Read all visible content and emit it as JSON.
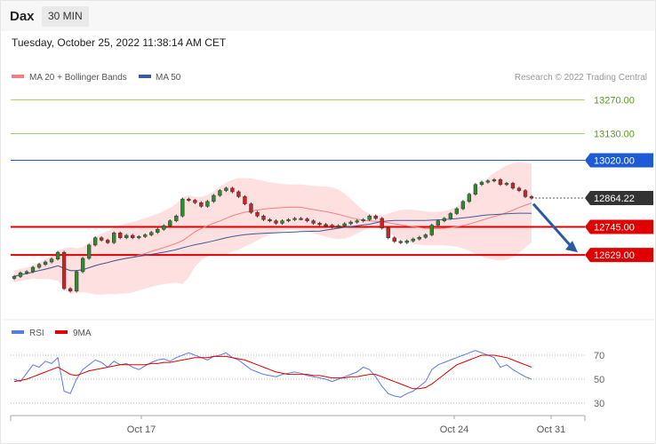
{
  "instrument": "Dax",
  "timeframe": "30 MIN",
  "datetime": "Tuesday, October 25, 2022 11:38:14 AM CET",
  "legend": {
    "ma20_label": "MA 20 + Bollinger Bands",
    "ma50_label": "MA 50",
    "copyright": "Research © 2022 Trading Central"
  },
  "rsi_legend": {
    "rsi_label": "RSI",
    "ma_label": "9MA"
  },
  "colors": {
    "ma20": "#f08080",
    "bollinger_fill": "#ffd5d5",
    "ma50": "#3d5a99",
    "resistance_green": "#a5cf6a",
    "resistance_text": "#5a9e1a",
    "blue_level": "#1c5ad6",
    "red_level": "#e00000",
    "last_price": "#333333",
    "arrow": "#2a5aa0",
    "candle_up": "#2e8b2e",
    "candle_down": "#cc2222",
    "rsi": "#5a7de0",
    "rsi_ma": "#e00000"
  },
  "chart_data": [
    {
      "type": "candlestick",
      "title": "Dax",
      "x_ticks": [
        "Oct 17",
        "Oct 24",
        "Oct 31"
      ],
      "ylim": [
        12380,
        13330
      ],
      "levels": [
        {
          "label": "13270.00",
          "value": 13270,
          "style": "resistance"
        },
        {
          "label": "13130.00",
          "value": 13130,
          "style": "resistance"
        },
        {
          "label": "13020.00",
          "value": 13020,
          "style": "key"
        },
        {
          "label": "12864.22",
          "value": 12864.22,
          "style": "last"
        },
        {
          "label": "12745.00",
          "value": 12745,
          "style": "support"
        },
        {
          "label": "12629.00",
          "value": 12629,
          "style": "support"
        }
      ],
      "close": [
        12540,
        12555,
        12560,
        12578,
        12590,
        12600,
        12612,
        12640,
        12490,
        12480,
        12560,
        12615,
        12670,
        12700,
        12690,
        12680,
        12720,
        12700,
        12710,
        12700,
        12705,
        12712,
        12722,
        12735,
        12750,
        12770,
        12790,
        12860,
        12855,
        12845,
        12830,
        12850,
        12875,
        12895,
        12905,
        12890,
        12870,
        12840,
        12805,
        12790,
        12775,
        12770,
        12760,
        12770,
        12775,
        12780,
        12778,
        12770,
        12760,
        12755,
        12752,
        12745,
        12750,
        12758,
        12765,
        12770,
        12775,
        12790,
        12780,
        12740,
        12700,
        12685,
        12680,
        12687,
        12695,
        12702,
        12712,
        12752,
        12770,
        12780,
        12800,
        12820,
        12850,
        12880,
        12920,
        12930,
        12935,
        12940,
        12920,
        12925,
        12905,
        12895,
        12870,
        12864
      ],
      "rsi": {
        "levels": [
          70,
          50,
          30
        ],
        "rsi": [
          50,
          48,
          55,
          62,
          60,
          65,
          63,
          68,
          40,
          38,
          50,
          58,
          62,
          66,
          64,
          60,
          65,
          62,
          63,
          60,
          58,
          61,
          64,
          66,
          67,
          65,
          68,
          70,
          72,
          70,
          68,
          66,
          69,
          70,
          72,
          68,
          66,
          62,
          58,
          56,
          54,
          53,
          52,
          54,
          55,
          56,
          55,
          53,
          52,
          51,
          50,
          48,
          50,
          52,
          54,
          56,
          60,
          58,
          52,
          44,
          38,
          36,
          35,
          38,
          40,
          44,
          48,
          58,
          62,
          64,
          66,
          68,
          70,
          72,
          74,
          72,
          70,
          68,
          60,
          62,
          58,
          55,
          52,
          50
        ],
        "ma9": [
          48,
          49,
          50,
          52,
          54,
          56,
          58,
          60,
          57,
          54,
          53,
          55,
          57,
          58,
          59,
          60,
          61,
          62,
          62,
          62,
          62,
          62,
          63,
          63,
          64,
          64,
          65,
          66,
          67,
          68,
          68,
          68,
          69,
          69,
          69,
          68,
          67,
          66,
          64,
          62,
          60,
          58,
          56,
          55,
          54,
          54,
          54,
          54,
          53,
          53,
          52,
          51,
          51,
          51,
          52,
          52,
          53,
          54,
          54,
          52,
          50,
          48,
          46,
          44,
          42,
          42,
          43,
          46,
          50,
          54,
          58,
          62,
          64,
          66,
          68,
          70,
          70,
          70,
          69,
          68,
          66,
          64,
          62,
          60
        ]
      }
    }
  ]
}
